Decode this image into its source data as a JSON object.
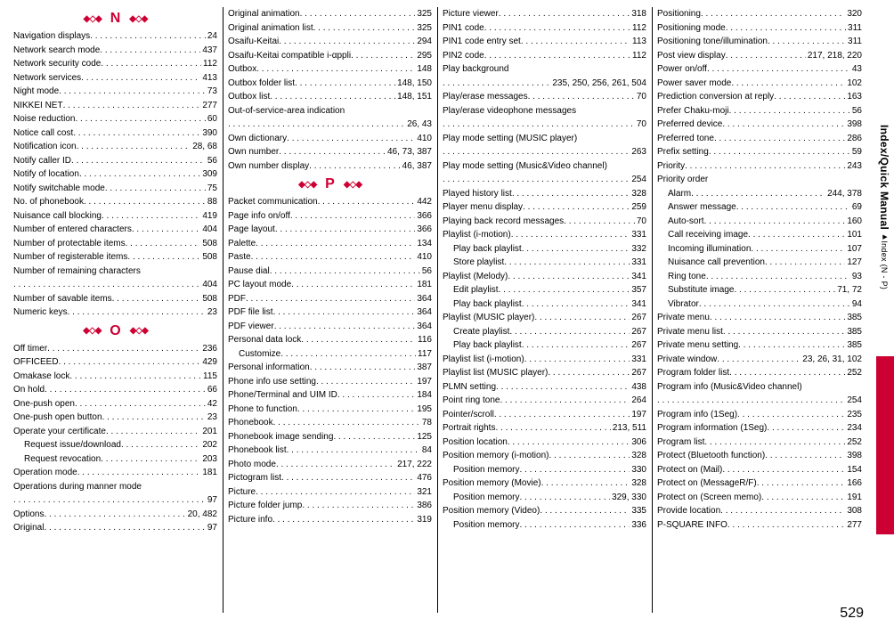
{
  "pageNumber": "529",
  "sideLabel": "Index/Quick Manual",
  "sideSub": "Index (N - P)",
  "sections": {
    "N": "N",
    "O": "O",
    "P": "P"
  },
  "columns": [
    {
      "items": [
        {
          "type": "head",
          "letter": "N"
        },
        {
          "label": "Navigation displays",
          "page": "24"
        },
        {
          "label": "Network search mode",
          "page": "437"
        },
        {
          "label": "Network security code",
          "page": "112"
        },
        {
          "label": "Network services",
          "page": "413"
        },
        {
          "label": "Night mode",
          "page": "73"
        },
        {
          "label": "NIKKEI NET",
          "page": "277"
        },
        {
          "label": "Noise reduction",
          "page": "60"
        },
        {
          "label": "Notice call cost",
          "page": "390"
        },
        {
          "label": "Notification icon",
          "page": "28, 68"
        },
        {
          "label": "Notify caller ID",
          "page": "56"
        },
        {
          "label": "Notify of location",
          "page": "309"
        },
        {
          "label": "Notify switchable mode",
          "page": "75"
        },
        {
          "label": "No. of phonebook",
          "page": "88"
        },
        {
          "label": "Nuisance call blocking",
          "page": "419"
        },
        {
          "label": "Number of entered characters",
          "page": "404"
        },
        {
          "label": "Number of protectable items",
          "page": "508"
        },
        {
          "label": "Number of registerable items",
          "page": "508"
        },
        {
          "type": "multi",
          "label": "Number of remaining characters",
          "page": "404"
        },
        {
          "label": "Number of savable items",
          "page": "508"
        },
        {
          "label": "Numeric keys",
          "page": "23"
        },
        {
          "type": "head",
          "letter": "O"
        },
        {
          "label": "Off timer",
          "page": "236"
        },
        {
          "label": "OFFICEED",
          "page": "429"
        },
        {
          "label": "Omakase lock",
          "page": "115"
        },
        {
          "label": "On hold",
          "page": "66"
        },
        {
          "label": "One-push open",
          "page": "42"
        },
        {
          "label": "One-push open button",
          "page": "23"
        },
        {
          "label": "Operate your certificate",
          "page": "201"
        },
        {
          "label": "Request issue/download",
          "page": "202",
          "indent": true
        },
        {
          "label": "Request revocation",
          "page": "203",
          "indent": true
        },
        {
          "label": "Operation mode",
          "page": "181"
        },
        {
          "type": "multi",
          "label": "Operations during manner mode",
          "page": "97"
        },
        {
          "label": "Options",
          "page": "20, 482"
        },
        {
          "label": "Original",
          "page": "97"
        }
      ]
    },
    {
      "items": [
        {
          "label": "Original animation",
          "page": "325"
        },
        {
          "label": "Original animation list",
          "page": "325"
        },
        {
          "label": "Osaifu-Keitai",
          "page": "294"
        },
        {
          "label": "Osaifu-Keitai compatible i-αppli",
          "page": "295"
        },
        {
          "label": "Outbox",
          "page": "148"
        },
        {
          "label": "Outbox folder list",
          "page": "148, 150"
        },
        {
          "label": "Outbox list",
          "page": "148, 151"
        },
        {
          "type": "multi",
          "label": "Out-of-service-area indication",
          "page": "26, 43"
        },
        {
          "label": "Own dictionary",
          "page": "410"
        },
        {
          "label": "Own number",
          "page": "46, 73, 387"
        },
        {
          "label": "Own number display",
          "page": "46, 387"
        },
        {
          "type": "head",
          "letter": "P"
        },
        {
          "label": "Packet communication",
          "page": "442"
        },
        {
          "label": "Page info on/off",
          "page": "366"
        },
        {
          "label": "Page layout",
          "page": "366"
        },
        {
          "label": "Palette",
          "page": "134"
        },
        {
          "label": "Paste",
          "page": "410"
        },
        {
          "label": "Pause dial",
          "page": "56"
        },
        {
          "label": "PC layout mode",
          "page": "181"
        },
        {
          "label": "PDF",
          "page": "364"
        },
        {
          "label": "PDF file list",
          "page": "364"
        },
        {
          "label": "PDF viewer",
          "page": "364"
        },
        {
          "label": "Personal data lock",
          "page": "116"
        },
        {
          "label": "Customize",
          "page": "117",
          "indent": true
        },
        {
          "label": "Personal information",
          "page": "387"
        },
        {
          "label": "Phone info use setting",
          "page": "197"
        },
        {
          "label": "Phone/Terminal and UIM ID",
          "page": "184"
        },
        {
          "label": "Phone to function",
          "page": "195"
        },
        {
          "label": "Phonebook",
          "page": "78"
        },
        {
          "label": "Phonebook image sending",
          "page": "125"
        },
        {
          "label": "Phonebook list",
          "page": "84"
        },
        {
          "label": "Photo mode",
          "page": "217, 222"
        },
        {
          "label": "Pictogram list",
          "page": "476"
        },
        {
          "label": "Picture",
          "page": "321"
        },
        {
          "label": "Picture folder jump",
          "page": "386"
        },
        {
          "label": "Picture info",
          "page": "319"
        }
      ]
    },
    {
      "items": [
        {
          "label": "Picture viewer",
          "page": "318"
        },
        {
          "label": "PIN1 code",
          "page": "112"
        },
        {
          "label": "PIN1 code entry set",
          "page": "113"
        },
        {
          "label": "PIN2 code",
          "page": "112"
        },
        {
          "type": "multi",
          "label": "Play background",
          "page": "235, 250, 256, 261, 504"
        },
        {
          "label": "Play/erase messages",
          "page": "70"
        },
        {
          "type": "multi",
          "label": "Play/erase videophone messages",
          "page": "70"
        },
        {
          "type": "multi",
          "label": "Play mode setting (MUSIC player)",
          "page": "263"
        },
        {
          "type": "multi",
          "label": "Play mode setting (Music&Video channel)",
          "page": "254"
        },
        {
          "label": "Played history list",
          "page": "328"
        },
        {
          "label": "Player menu display",
          "page": "259"
        },
        {
          "label": "Playing back record messages",
          "page": "70"
        },
        {
          "label": "Playlist (i-motion)",
          "page": "331"
        },
        {
          "label": "Play back playlist",
          "page": "332",
          "indent": true
        },
        {
          "label": "Store playlist",
          "page": "331",
          "indent": true
        },
        {
          "label": "Playlist (Melody)",
          "page": "341"
        },
        {
          "label": "Edit playlist",
          "page": "357",
          "indent": true
        },
        {
          "label": "Play back playlist",
          "page": "341",
          "indent": true
        },
        {
          "label": "Playlist (MUSIC player)",
          "page": "267"
        },
        {
          "label": "Create playlist",
          "page": "267",
          "indent": true
        },
        {
          "label": "Play back playlist",
          "page": "267",
          "indent": true
        },
        {
          "label": "Playlist list (i-motion)",
          "page": "331"
        },
        {
          "label": "Playlist list (MUSIC player)",
          "page": "267"
        },
        {
          "label": "PLMN setting",
          "page": "438"
        },
        {
          "label": "Point ring tone",
          "page": "264"
        },
        {
          "label": "Pointer/scroll",
          "page": "197"
        },
        {
          "label": "Portrait rights",
          "page": "213, 511"
        },
        {
          "label": "Position location",
          "page": "306"
        },
        {
          "label": "Position memory (i-motion)",
          "page": "328"
        },
        {
          "label": "Position memory",
          "page": "330",
          "indent": true
        },
        {
          "label": "Position memory (Movie)",
          "page": "328"
        },
        {
          "label": "Position memory",
          "page": "329, 330",
          "indent": true
        },
        {
          "label": "Position memory (Video)",
          "page": "335"
        },
        {
          "label": "Position memory",
          "page": "336",
          "indent": true
        }
      ]
    },
    {
      "items": [
        {
          "label": "Positioning",
          "page": "320"
        },
        {
          "label": "Positioning mode",
          "page": "311"
        },
        {
          "label": "Positioning tone/illumination",
          "page": "311"
        },
        {
          "label": "Post view display",
          "page": "217, 218, 220"
        },
        {
          "label": "Power on/off",
          "page": "43"
        },
        {
          "label": "Power saver mode",
          "page": "102"
        },
        {
          "label": "Prediction conversion at reply",
          "page": "163"
        },
        {
          "label": "Prefer Chaku-moji",
          "page": "56"
        },
        {
          "label": "Preferred device",
          "page": "398"
        },
        {
          "label": "Preferred tone",
          "page": "286"
        },
        {
          "label": "Prefix setting",
          "page": "59"
        },
        {
          "label": "Priority",
          "page": "243"
        },
        {
          "type": "plain",
          "label": "Priority order"
        },
        {
          "label": "Alarm",
          "page": "244, 378",
          "indent": true
        },
        {
          "label": "Answer message",
          "page": "69",
          "indent": true
        },
        {
          "label": "Auto-sort",
          "page": "160",
          "indent": true
        },
        {
          "label": "Call receiving image",
          "page": "101",
          "indent": true
        },
        {
          "label": "Incoming illumination",
          "page": "107",
          "indent": true
        },
        {
          "label": "Nuisance call prevention",
          "page": "127",
          "indent": true
        },
        {
          "label": "Ring tone",
          "page": "93",
          "indent": true
        },
        {
          "label": "Substitute image",
          "page": "71, 72",
          "indent": true
        },
        {
          "label": "Vibrator",
          "page": "94",
          "indent": true
        },
        {
          "label": "Private menu",
          "page": "385"
        },
        {
          "label": "Private menu list",
          "page": "385"
        },
        {
          "label": "Private menu setting",
          "page": "385"
        },
        {
          "label": "Private window",
          "page": "23, 26, 31, 102"
        },
        {
          "label": "Program folder list",
          "page": "252"
        },
        {
          "type": "multi",
          "label": "Program info (Music&Video channel)",
          "page": "254"
        },
        {
          "label": "Program info (1Seg)",
          "page": "235"
        },
        {
          "label": "Program information (1Seg)",
          "page": "234"
        },
        {
          "label": "Program list",
          "page": "252"
        },
        {
          "label": "Protect (Bluetooth function)",
          "page": "398"
        },
        {
          "label": "Protect on (Mail)",
          "page": "154"
        },
        {
          "label": "Protect on (MessageR/F)",
          "page": "166"
        },
        {
          "label": "Protect on (Screen memo)",
          "page": "191"
        },
        {
          "label": "Provide location",
          "page": "308"
        },
        {
          "label": "P-SQUARE INFO",
          "page": "277"
        }
      ]
    }
  ]
}
